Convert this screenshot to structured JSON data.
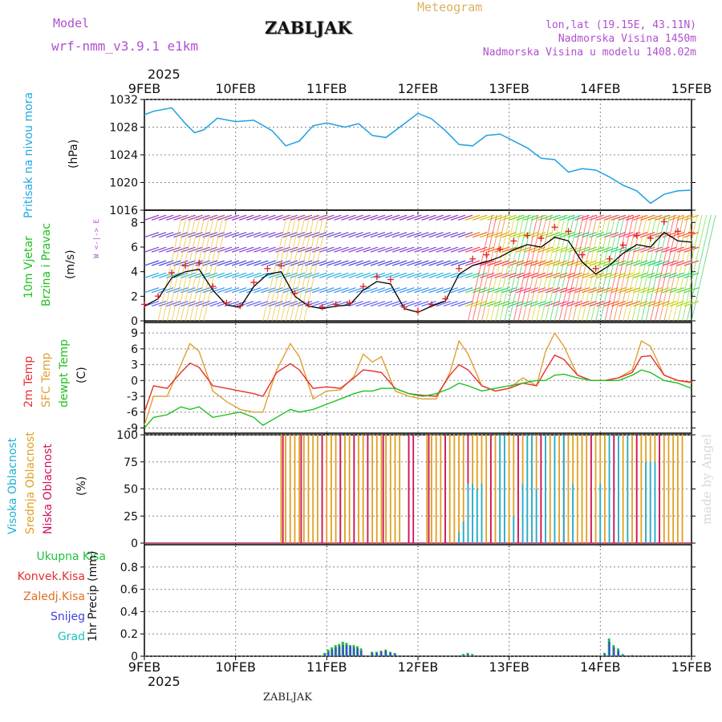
{
  "header": {
    "model_label": "Model",
    "model_name": "wrf-nmm_v3.9.1 e1km",
    "station": "ZABLJAK",
    "product": "Meteogram",
    "lonlat": "lon,lat (19.15E, 43.11N)",
    "altitude": "Nadmorska Visina 1450m",
    "model_altitude": "Nadmorska Visina u modelu 1408.02m"
  },
  "footer": {
    "station": "ZABLJAK",
    "credit": "made by Angel"
  },
  "x_axis": {
    "year": "2025",
    "ticks": [
      "9FEB",
      "10FEB",
      "11FEB",
      "12FEB",
      "13FEB",
      "14FEB",
      "15FEB"
    ]
  },
  "panels": {
    "pressure": {
      "label1": "Pritisak na nivou mora",
      "unit": "(hPa)"
    },
    "wind": {
      "label1": "10m Vjetar",
      "label2": "Brzina i Pravac",
      "unit": "(m/s)",
      "compass": "W <-|-> E"
    },
    "temp": {
      "label1": "2m Temp",
      "label2": "SFC Temp",
      "label3": "dewpt Temp",
      "unit": "(C)"
    },
    "cloud": {
      "label1": "Visoka Oblacnost",
      "label2": "Srednja Oblacnost",
      "label3": "Niska Oblacnost",
      "unit": "(%)"
    },
    "precip": {
      "legend": [
        "Ukupna Kisa",
        "Konvek.Kisa",
        "Zaledj.Kisa",
        "Snijeg",
        "Grad"
      ],
      "unit": "1hr Precip (mm)"
    }
  },
  "colors": {
    "pressure": "#1ea0e0",
    "t2m": "#e83030",
    "sfc": "#e0a030",
    "dewpt": "#20c020",
    "high_cloud": "#20b0d0",
    "mid_cloud": "#e0a020",
    "low_cloud": "#d01060",
    "rain": "#20c040",
    "conv": "#e03030",
    "freez": "#e07020",
    "snow": "#4040e0",
    "hail": "#20c0c0",
    "purple_text": "#b050d0",
    "orange_text": "#e0b060"
  },
  "chart_data": [
    {
      "type": "line",
      "title": "Pritisak na nivou mora",
      "ylabel": "(hPa)",
      "ylim": [
        1016,
        1032
      ],
      "yticks": [
        1016,
        1020,
        1024,
        1028,
        1032
      ],
      "x": [
        0,
        0.1,
        0.3,
        0.45,
        0.55,
        0.65,
        0.8,
        1.0,
        1.2,
        1.4,
        1.55,
        1.7,
        1.85,
        2.0,
        2.2,
        2.35,
        2.5,
        2.65,
        2.8,
        3.0,
        3.15,
        3.3,
        3.45,
        3.6,
        3.75,
        3.9,
        4.05,
        4.2,
        4.35,
        4.5,
        4.65,
        4.8,
        4.95,
        5.1,
        5.25,
        5.4,
        5.55,
        5.7,
        5.85,
        6.0
      ],
      "series": [
        {
          "values": [
            1029.8,
            1030.3,
            1030.8,
            1028.5,
            1027.2,
            1027.6,
            1029.3,
            1028.8,
            1029.0,
            1027.5,
            1025.3,
            1026.0,
            1028.2,
            1028.6,
            1028.0,
            1028.5,
            1026.8,
            1026.5,
            1028.0,
            1030.0,
            1029.2,
            1027.5,
            1025.5,
            1025.3,
            1026.8,
            1027.0,
            1026.0,
            1025.0,
            1023.5,
            1023.3,
            1021.5,
            1022.0,
            1021.8,
            1020.8,
            1019.6,
            1018.8,
            1017.0,
            1018.3,
            1018.8,
            1018.9
          ]
        }
      ]
    },
    {
      "type": "line",
      "title": "10m Vjetar Brzina i Pravac",
      "ylabel": "(m/s)",
      "ylim": [
        0,
        9
      ],
      "yticks": [
        0,
        2,
        4,
        6,
        8
      ],
      "x": [
        0,
        0.15,
        0.3,
        0.45,
        0.6,
        0.75,
        0.9,
        1.05,
        1.2,
        1.35,
        1.5,
        1.65,
        1.8,
        1.95,
        2.1,
        2.25,
        2.4,
        2.55,
        2.7,
        2.85,
        3.0,
        3.15,
        3.3,
        3.45,
        3.6,
        3.75,
        3.9,
        4.05,
        4.2,
        4.35,
        4.5,
        4.65,
        4.8,
        4.95,
        5.1,
        5.25,
        5.4,
        5.55,
        5.7,
        5.85,
        6.0
      ],
      "series": [
        {
          "values": [
            1.2,
            1.8,
            3.5,
            4.0,
            4.2,
            2.5,
            1.3,
            1.1,
            2.8,
            3.8,
            4.0,
            2.0,
            1.2,
            1.0,
            1.2,
            1.3,
            2.5,
            3.2,
            3.0,
            1.0,
            0.7,
            1.2,
            1.6,
            3.8,
            4.5,
            4.8,
            5.2,
            5.8,
            6.2,
            6.0,
            6.8,
            6.5,
            4.8,
            3.8,
            4.5,
            5.5,
            6.2,
            6.0,
            7.2,
            6.5,
            6.4
          ]
        }
      ]
    },
    {
      "type": "line",
      "title": "2m Temp / SFC Temp / dewpt Temp",
      "ylabel": "(C)",
      "ylim": [
        -10,
        11
      ],
      "yticks": [
        -9,
        -6,
        -3,
        0,
        3,
        6,
        9
      ],
      "x": [
        0,
        0.1,
        0.25,
        0.4,
        0.5,
        0.6,
        0.75,
        0.9,
        1.05,
        1.2,
        1.3,
        1.45,
        1.6,
        1.7,
        1.85,
        2.0,
        2.15,
        2.3,
        2.4,
        2.5,
        2.6,
        2.75,
        2.9,
        3.05,
        3.2,
        3.35,
        3.45,
        3.55,
        3.7,
        3.85,
        4.0,
        4.15,
        4.3,
        4.4,
        4.5,
        4.6,
        4.75,
        4.9,
        5.05,
        5.2,
        5.35,
        5.45,
        5.55,
        5.7,
        5.85,
        6.0
      ],
      "series": [
        {
          "name": "2m Temp",
          "values": [
            -6.0,
            -1.0,
            -1.5,
            1.5,
            3.3,
            2.5,
            -1.0,
            -1.5,
            -2.0,
            -2.5,
            -3.0,
            1.5,
            3.2,
            2.0,
            -1.5,
            -1.2,
            -1.5,
            0.5,
            2.0,
            1.8,
            1.5,
            -1.5,
            -2.5,
            -2.8,
            -3.0,
            1.0,
            3.0,
            2.0,
            -1.0,
            -2.0,
            -1.5,
            -0.5,
            -1.0,
            2.0,
            4.8,
            4.0,
            1.0,
            0.0,
            0.0,
            0.5,
            1.5,
            4.5,
            4.7,
            1.0,
            0.0,
            -0.3
          ]
        },
        {
          "name": "SFC Temp",
          "values": [
            -8.5,
            -3.0,
            -3.0,
            3.0,
            7.0,
            5.5,
            -2.0,
            -4.0,
            -5.5,
            -6.0,
            -6.0,
            2.0,
            7.0,
            4.5,
            -3.5,
            -2.0,
            -1.8,
            0.8,
            5.0,
            3.5,
            4.5,
            -2.0,
            -3.0,
            -3.5,
            -3.5,
            1.5,
            7.5,
            5.0,
            -1.0,
            -2.0,
            -1.5,
            0.5,
            -1.0,
            5.5,
            9.0,
            6.5,
            1.0,
            0.0,
            0.0,
            0.5,
            2.0,
            7.5,
            6.5,
            1.0,
            0.0,
            -0.5
          ]
        },
        {
          "name": "dewpt Temp",
          "values": [
            -9.0,
            -7.0,
            -6.5,
            -5.0,
            -5.5,
            -5.0,
            -7.0,
            -6.5,
            -6.0,
            -7.0,
            -8.5,
            -7.0,
            -5.5,
            -6.0,
            -5.5,
            -4.5,
            -3.5,
            -2.5,
            -2.0,
            -2.0,
            -1.5,
            -1.5,
            -2.5,
            -3.0,
            -2.5,
            -1.5,
            -0.5,
            -1.0,
            -2.0,
            -1.5,
            -1.0,
            -0.5,
            0.0,
            0.0,
            1.0,
            1.2,
            0.5,
            0.0,
            0.0,
            0.0,
            1.0,
            2.0,
            1.5,
            0.0,
            -0.5,
            -1.5
          ]
        }
      ]
    },
    {
      "type": "bar",
      "title": "Visoka / Srednja / Niska Oblacnost",
      "ylabel": "(%)",
      "ylim": [
        0,
        100
      ],
      "yticks": [
        0,
        25,
        50,
        75,
        100
      ],
      "series": [
        {
          "name": "Srednja Oblacnost",
          "x": [
            1.5,
            1.55,
            1.6,
            1.65,
            1.7,
            1.75,
            1.8,
            1.85,
            1.9,
            1.95,
            2.0,
            2.05,
            2.1,
            2.15,
            2.2,
            2.25,
            2.3,
            2.35,
            2.4,
            2.45,
            2.5,
            2.55,
            2.6,
            2.65,
            2.7,
            2.75,
            2.8,
            2.9,
            3.1,
            3.15,
            3.2,
            3.25,
            3.3,
            3.35,
            3.4,
            3.45,
            3.5,
            3.6,
            3.65,
            3.7,
            3.75,
            3.8,
            3.85,
            3.9,
            3.95,
            4.0,
            4.05,
            4.1,
            4.15,
            4.2,
            4.25,
            4.3,
            4.35,
            4.4,
            4.45,
            4.5,
            4.55,
            4.6,
            4.65,
            4.7,
            4.75,
            4.8,
            4.85,
            4.9,
            4.95,
            5.0,
            5.05,
            5.1,
            5.15,
            5.2,
            5.25,
            5.3,
            5.35,
            5.4,
            5.45,
            5.5,
            5.55,
            5.6,
            5.65,
            5.7,
            5.75,
            5.8,
            5.85,
            5.9
          ],
          "values": [
            100,
            100,
            100,
            100,
            100,
            100,
            100,
            100,
            100,
            100,
            100,
            100,
            100,
            100,
            100,
            100,
            100,
            100,
            100,
            100,
            100,
            100,
            100,
            100,
            100,
            100,
            100,
            100,
            100,
            100,
            100,
            100,
            100,
            100,
            100,
            100,
            100,
            100,
            100,
            100,
            100,
            100,
            100,
            100,
            100,
            100,
            100,
            100,
            100,
            100,
            100,
            100,
            100,
            100,
            100,
            100,
            100,
            100,
            100,
            100,
            100,
            100,
            100,
            100,
            100,
            100,
            100,
            100,
            100,
            100,
            100,
            100,
            100,
            100,
            100,
            100,
            100,
            100,
            100,
            100,
            100,
            100,
            100,
            100
          ]
        },
        {
          "name": "Niska Oblacnost",
          "x": [
            1.52,
            1.72,
            1.95,
            2.15,
            2.3,
            2.45,
            2.62,
            2.9,
            2.95,
            3.12,
            3.3,
            3.55,
            3.8,
            4.1,
            4.35,
            4.6,
            4.9,
            5.15,
            5.4,
            5.65
          ],
          "values": [
            100,
            100,
            100,
            100,
            100,
            100,
            100,
            100,
            100,
            100,
            100,
            100,
            100,
            100,
            100,
            100,
            100,
            100,
            100,
            100
          ]
        },
        {
          "name": "Visoka Oblacnost",
          "x": [
            3.45,
            3.5,
            3.55,
            3.6,
            3.65,
            3.7,
            3.9,
            3.95,
            4.05,
            4.15,
            4.2,
            4.25,
            4.3,
            4.4,
            4.5,
            4.6,
            4.7,
            5.0,
            5.1,
            5.2,
            5.3,
            5.5,
            5.55,
            5.6
          ],
          "values": [
            10,
            20,
            55,
            55,
            50,
            55,
            100,
            100,
            25,
            55,
            100,
            100,
            50,
            100,
            100,
            100,
            55,
            55,
            100,
            100,
            100,
            75,
            75,
            75
          ]
        }
      ]
    },
    {
      "type": "bar",
      "title": "1hr Precip",
      "ylabel": "1hr Precip (mm)",
      "ylim": [
        0,
        1.0
      ],
      "yticks": [
        0,
        0.2,
        0.4,
        0.6,
        0.8
      ],
      "series": [
        {
          "name": "Ukupna Kisa",
          "x": [
            1.98,
            2.02,
            2.06,
            2.1,
            2.14,
            2.18,
            2.22,
            2.26,
            2.3,
            2.34,
            2.38,
            2.5,
            2.55,
            2.6,
            2.65,
            2.7,
            2.75,
            3.5,
            3.55,
            3.6,
            5.05,
            5.1,
            5.15,
            5.2,
            5.25,
            5.35
          ],
          "values": [
            0.03,
            0.06,
            0.08,
            0.1,
            0.11,
            0.13,
            0.12,
            0.1,
            0.1,
            0.09,
            0.07,
            0.04,
            0.04,
            0.05,
            0.06,
            0.04,
            0.03,
            0.02,
            0.03,
            0.02,
            0.03,
            0.16,
            0.1,
            0.07,
            0.02,
            0.01
          ]
        },
        {
          "name": "Snijeg",
          "x": [
            1.98,
            2.02,
            2.06,
            2.1,
            2.14,
            2.18,
            2.22,
            2.26,
            2.3,
            2.34,
            2.38,
            2.5,
            2.55,
            2.6,
            2.65,
            2.7,
            2.75,
            3.5,
            3.55,
            3.6,
            5.05,
            5.1,
            5.15,
            5.2,
            5.25,
            5.35
          ],
          "values": [
            0.02,
            0.04,
            0.06,
            0.08,
            0.09,
            0.1,
            0.1,
            0.09,
            0.08,
            0.07,
            0.05,
            0.03,
            0.03,
            0.04,
            0.05,
            0.03,
            0.02,
            0.01,
            0.02,
            0.01,
            0.02,
            0.13,
            0.08,
            0.05,
            0.01,
            0.01
          ]
        }
      ]
    }
  ]
}
